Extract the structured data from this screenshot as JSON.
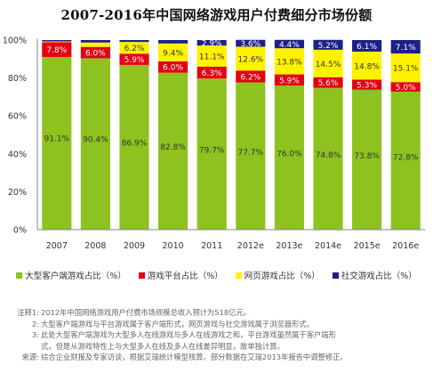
{
  "chart_data": {
    "type": "bar",
    "stacked": true,
    "title": "2007-2016年中国网络游戏用户付费细分市场份额",
    "categories": [
      "2007",
      "2008",
      "2009",
      "2010",
      "2011",
      "2012e",
      "2013e",
      "2014e",
      "2015e",
      "2016e"
    ],
    "ylim": [
      0,
      100
    ],
    "yticks": [
      "0%",
      "20%",
      "40%",
      "60%",
      "80%",
      "100%"
    ],
    "grid": false,
    "legend_position": "bottom",
    "series": [
      {
        "name": "大型客户端游戏占比（%）",
        "color": "#8dc21f",
        "label_color": "#333333",
        "values": [
          91.1,
          90.4,
          86.9,
          82.8,
          79.7,
          77.7,
          76.0,
          74.8,
          73.8,
          72.8
        ],
        "labels": [
          "91.1%",
          "90.4%",
          "86.9%",
          "82.8%",
          "79.7%",
          "77.7%",
          "76.0%",
          "74.8%",
          "73.8%",
          "72.8%"
        ]
      },
      {
        "name": "游戏平台占比（%）",
        "color": "#e50012",
        "label_color": "#ffffff",
        "values": [
          7.8,
          6.0,
          5.9,
          6.0,
          6.3,
          6.2,
          5.9,
          5.6,
          5.3,
          5.0
        ],
        "labels": [
          "7.8%",
          "6.0%",
          "5.9%",
          "6.0%",
          "6.3%",
          "6.2%",
          "5.9%",
          "5.6%",
          "5.3%",
          "5.0%"
        ]
      },
      {
        "name": "网页游戏占比（%）",
        "color": "#fff200",
        "label_color": "#333333",
        "values": [
          0.4,
          2.3,
          6.2,
          9.4,
          11.1,
          12.6,
          13.8,
          14.5,
          14.8,
          15.1
        ],
        "labels": [
          "",
          "",
          "6.2%",
          "9.4%",
          "11.1%",
          "12.6%",
          "13.8%",
          "14.5%",
          "14.8%",
          "15.1%"
        ]
      },
      {
        "name": "社交游戏占比（%）",
        "color": "#1d2088",
        "label_color": "#ffffff",
        "values": [
          0.7,
          1.3,
          1.0,
          1.8,
          2.9,
          3.6,
          4.4,
          5.2,
          6.1,
          7.1
        ],
        "labels": [
          "",
          "",
          "",
          "",
          "2.9%",
          "3.6%",
          "4.4%",
          "5.2%",
          "6.1%",
          "7.1%"
        ]
      }
    ]
  },
  "notes": [
    {
      "label": "注释1:",
      "text": "2012年中国网络游戏用户付费市场规模总收入预计为518亿元。"
    },
    {
      "label": "2:",
      "text": "大型客户端游戏与平台游戏属于客户端形式，网页游戏与社交游戏属于浏览器形式。"
    },
    {
      "label": "3:",
      "text": "此处大型客户端游戏为大型多人在线游戏与多人在线游戏之和，平台游戏虽然属于客户端形"
    },
    {
      "label": "",
      "text": "式，但是从游戏特性上与大型多人在线及多人在线差异明显，故单独计算。"
    },
    {
      "label": "来源:",
      "text": "综合企业财报及专家访谈，根据艾瑞统计模型核算。部分数据在艾瑞2013年报告中调整修正。"
    }
  ]
}
